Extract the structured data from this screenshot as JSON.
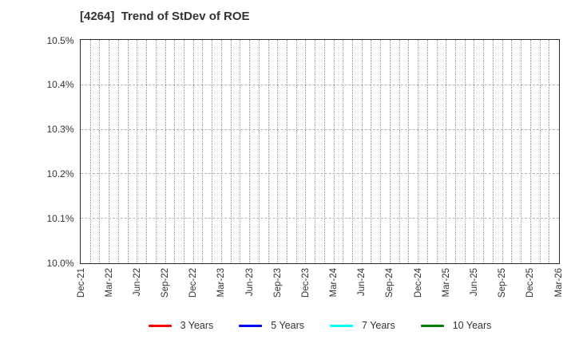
{
  "title": "[4264]  Trend of StDev of ROE",
  "chart_data": {
    "type": "line",
    "title": "[4264]  Trend of StDev of ROE",
    "xlabel": "",
    "ylabel": "",
    "y_unit": "%",
    "ylim": [
      10.0,
      10.5
    ],
    "y_tick_labels_top_to_bottom": [
      "10.5%",
      "10.4%",
      "10.3%",
      "10.2%",
      "10.1%",
      "10.0%"
    ],
    "x_tick_labels": [
      "Dec-21",
      "Mar-22",
      "Jun-22",
      "Sep-22",
      "Dec-22",
      "Mar-23",
      "Jun-23",
      "Sep-23",
      "Dec-23",
      "Mar-24",
      "Jun-24",
      "Sep-24",
      "Dec-24",
      "Mar-25",
      "Jun-25",
      "Sep-25",
      "Dec-25",
      "Mar-26"
    ],
    "minor_x_divisions_total": 51,
    "grid": true,
    "legend_position": "bottom-center",
    "series": [
      {
        "name": "3 Years",
        "color": "#ff0000",
        "values": []
      },
      {
        "name": "5 Years",
        "color": "#0000ff",
        "values": []
      },
      {
        "name": "7 Years",
        "color": "#00ffff",
        "values": []
      },
      {
        "name": "10 Years",
        "color": "#008000",
        "values": []
      }
    ]
  }
}
